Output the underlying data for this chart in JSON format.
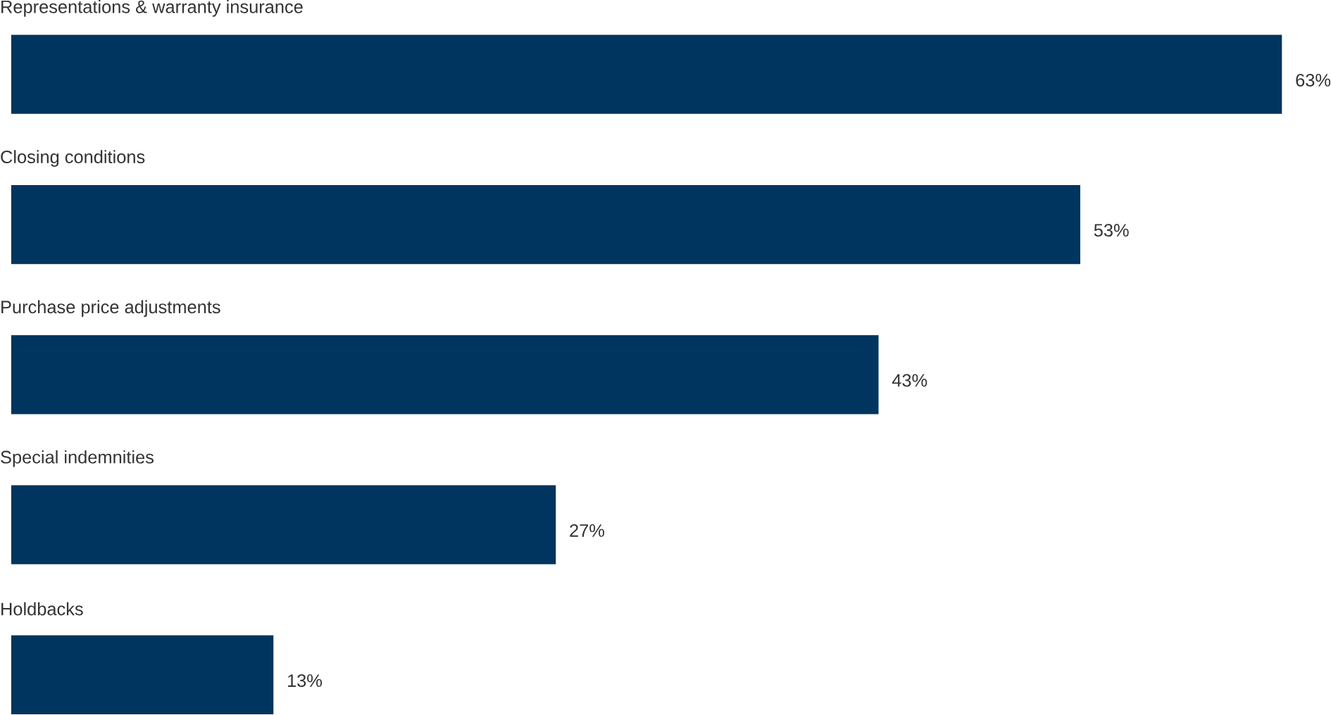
{
  "chart_data": {
    "type": "bar",
    "orientation": "horizontal",
    "categories": [
      "Representations & warranty insurance",
      "Closing conditions",
      "Purchase price adjustments",
      "Special indemnities",
      "Holdbacks"
    ],
    "values": [
      63,
      53,
      43,
      27,
      13
    ],
    "value_labels": [
      "63%",
      "53%",
      "43%",
      "27%",
      "13%"
    ],
    "color": "#00355f"
  }
}
